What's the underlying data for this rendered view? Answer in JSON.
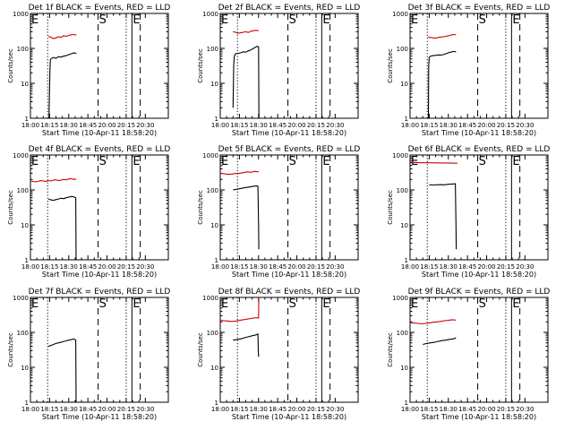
{
  "common": {
    "ylabel": "Counts/sec",
    "xlabel": "Start Time (10-Apr-11 18:58:20)",
    "x_tick_labels": [
      "18:00",
      "18:15",
      "18:30",
      "18:45",
      "20:00",
      "20:15",
      "20:30"
    ],
    "y_tick_labels": [
      "1",
      "10",
      "100",
      "1000"
    ],
    "x_ticks_minutes": [
      0,
      15,
      30,
      45,
      60,
      75,
      90
    ],
    "y_ticks": [
      1,
      10,
      100,
      1000
    ],
    "xlim_minutes": [
      0,
      108
    ],
    "ylim": [
      1,
      1000
    ],
    "y_scale": "log",
    "event_colors": {
      "events": "#000000",
      "lld": "#cc0000"
    }
  },
  "chart_data": [
    {
      "type": "line",
      "title": "Det 1f BLACK = Events, RED = LLD",
      "markers": [
        {
          "label": "E",
          "x": 0,
          "style": "solid"
        },
        {
          "label": "",
          "x": 13.5,
          "style": "dotted"
        },
        {
          "label": "S",
          "x": 53,
          "style": "dashed"
        },
        {
          "label": "",
          "x": 75,
          "style": "dotted"
        },
        {
          "label": "E",
          "x": 79.5,
          "style": "solid"
        },
        {
          "label": "",
          "x": 86,
          "style": "dashed"
        }
      ],
      "series": [
        {
          "name": "LLD",
          "x": [
            14,
            16,
            18,
            20,
            22,
            24,
            26,
            28,
            30,
            32,
            34,
            36
          ],
          "y": [
            220,
            210,
            190,
            200,
            215,
            205,
            230,
            220,
            235,
            245,
            250,
            240
          ]
        },
        {
          "name": "Events",
          "x": [
            14.5,
            15.2,
            15.6,
            16,
            18,
            20,
            22,
            24,
            26,
            28,
            30,
            32,
            34,
            36
          ],
          "y": [
            1,
            20,
            45,
            50,
            55,
            52,
            58,
            56,
            60,
            62,
            66,
            70,
            74,
            72
          ]
        }
      ]
    },
    {
      "type": "line",
      "title": "Det 2f BLACK = Events, RED = LLD",
      "markers": [
        {
          "label": "E",
          "x": 0,
          "style": "solid"
        },
        {
          "label": "",
          "x": 13.5,
          "style": "dotted"
        },
        {
          "label": "S",
          "x": 53,
          "style": "dashed"
        },
        {
          "label": "",
          "x": 75,
          "style": "dotted"
        },
        {
          "label": "E",
          "x": 79.5,
          "style": "solid"
        },
        {
          "label": "",
          "x": 86,
          "style": "dashed"
        }
      ],
      "series": [
        {
          "name": "LLD",
          "x": [
            10,
            12,
            14,
            16,
            18,
            20,
            22,
            24,
            26,
            28,
            30
          ],
          "y": [
            300,
            290,
            270,
            280,
            290,
            300,
            285,
            310,
            320,
            330,
            320
          ]
        },
        {
          "name": "Events",
          "x": [
            10,
            10.5,
            11,
            12,
            14,
            16,
            18,
            20,
            22,
            24,
            26,
            28,
            29,
            30,
            30.3
          ],
          "y": [
            2,
            30,
            60,
            70,
            72,
            75,
            80,
            78,
            85,
            90,
            100,
            110,
            115,
            110,
            1
          ]
        }
      ]
    },
    {
      "type": "line",
      "title": "Det 3f BLACK = Events, RED = LLD",
      "markers": [
        {
          "label": "E",
          "x": 0,
          "style": "solid"
        },
        {
          "label": "",
          "x": 13.5,
          "style": "dotted"
        },
        {
          "label": "S",
          "x": 53,
          "style": "dashed"
        },
        {
          "label": "",
          "x": 75,
          "style": "dotted"
        },
        {
          "label": "E",
          "x": 79.5,
          "style": "solid"
        },
        {
          "label": "",
          "x": 86,
          "style": "dashed"
        }
      ],
      "series": [
        {
          "name": "LLD",
          "x": [
            14,
            16,
            18,
            20,
            22,
            24,
            26,
            28,
            30,
            32,
            34,
            36
          ],
          "y": [
            210,
            205,
            200,
            195,
            205,
            210,
            215,
            220,
            230,
            240,
            250,
            245
          ]
        },
        {
          "name": "Events",
          "x": [
            14.4,
            14.6,
            15,
            16,
            18,
            20,
            22,
            24,
            26,
            28,
            30,
            32,
            34,
            36
          ],
          "y": [
            1,
            30,
            55,
            60,
            62,
            63,
            65,
            64,
            66,
            70,
            75,
            78,
            82,
            80
          ]
        }
      ]
    },
    {
      "type": "line",
      "title": "Det 4f BLACK = Events, RED = LLD",
      "markers": [
        {
          "label": "E",
          "x": 0,
          "style": "solid"
        },
        {
          "label": "",
          "x": 13.5,
          "style": "dotted"
        },
        {
          "label": "S",
          "x": 53,
          "style": "dashed"
        },
        {
          "label": "",
          "x": 75,
          "style": "dotted"
        },
        {
          "label": "E",
          "x": 79.5,
          "style": "solid"
        },
        {
          "label": "",
          "x": 86,
          "style": "dashed"
        }
      ],
      "series": [
        {
          "name": "LLD",
          "x": [
            0,
            2,
            4,
            6,
            8,
            10,
            12,
            14,
            16,
            18,
            20,
            22,
            24,
            26,
            28,
            30,
            32,
            34,
            36
          ],
          "y": [
            180,
            175,
            170,
            175,
            185,
            180,
            175,
            185,
            180,
            190,
            195,
            185,
            190,
            200,
            195,
            205,
            210,
            200,
            205
          ]
        },
        {
          "name": "Events",
          "x": [
            14,
            16,
            18,
            20,
            22,
            24,
            26,
            28,
            30,
            32,
            34,
            35.5,
            35.8
          ],
          "y": [
            55,
            52,
            50,
            53,
            55,
            58,
            56,
            60,
            62,
            65,
            63,
            60,
            1
          ]
        }
      ]
    },
    {
      "type": "line",
      "title": "Det 5f BLACK = Events, RED = LLD",
      "markers": [
        {
          "label": "E",
          "x": 0,
          "style": "solid"
        },
        {
          "label": "",
          "x": 13.5,
          "style": "dotted"
        },
        {
          "label": "S",
          "x": 53,
          "style": "dashed"
        },
        {
          "label": "",
          "x": 75,
          "style": "dotted"
        },
        {
          "label": "E",
          "x": 79.5,
          "style": "solid"
        },
        {
          "label": "",
          "x": 86,
          "style": "dashed"
        }
      ],
      "series": [
        {
          "name": "LLD",
          "x": [
            0,
            3,
            6,
            9,
            12,
            15,
            18,
            21,
            24,
            27,
            30
          ],
          "y": [
            300,
            290,
            280,
            285,
            295,
            300,
            310,
            330,
            320,
            340,
            330
          ]
        },
        {
          "name": "Events",
          "x": [
            10,
            13,
            16,
            19,
            22,
            25,
            28,
            29.5,
            30,
            30.2
          ],
          "y": [
            100,
            105,
            110,
            115,
            120,
            125,
            130,
            128,
            10,
            2
          ]
        }
      ]
    },
    {
      "type": "line",
      "title": "Det 6f BLACK = Events, RED = LLD",
      "markers": [
        {
          "label": "E",
          "x": 0,
          "style": "solid"
        },
        {
          "label": "",
          "x": 13.5,
          "style": "dotted"
        },
        {
          "label": "S",
          "x": 53,
          "style": "dashed"
        },
        {
          "label": "",
          "x": 75,
          "style": "dotted"
        },
        {
          "label": "E",
          "x": 79.5,
          "style": "solid"
        },
        {
          "label": "",
          "x": 86,
          "style": "dashed"
        }
      ],
      "series": [
        {
          "name": "LLD",
          "x": [
            0,
            5,
            10,
            15,
            20,
            25,
            30,
            35,
            37
          ],
          "y": [
            620,
            610,
            600,
            600,
            595,
            590,
            590,
            580,
            580
          ]
        },
        {
          "name": "Events",
          "x": [
            15,
            18,
            21,
            24,
            27,
            30,
            33,
            35.5,
            36,
            36.2
          ],
          "y": [
            140,
            138,
            140,
            142,
            140,
            145,
            148,
            150,
            10,
            2
          ]
        }
      ]
    },
    {
      "type": "line",
      "title": "Det 7f BLACK = Events, RED = LLD",
      "markers": [
        {
          "label": "E",
          "x": 0,
          "style": "solid"
        },
        {
          "label": "",
          "x": 13.5,
          "style": "dotted"
        },
        {
          "label": "S",
          "x": 53,
          "style": "dashed"
        },
        {
          "label": "",
          "x": 75,
          "style": "dotted"
        },
        {
          "label": "E",
          "x": 79.5,
          "style": "solid"
        },
        {
          "label": "",
          "x": 86,
          "style": "dashed"
        }
      ],
      "series": [
        {
          "name": "Events",
          "x": [
            14,
            16,
            18,
            20,
            22,
            24,
            26,
            28,
            30,
            32,
            34,
            35.5,
            35.8
          ],
          "y": [
            40,
            42,
            45,
            48,
            50,
            52,
            55,
            57,
            60,
            62,
            65,
            60,
            1
          ]
        }
      ]
    },
    {
      "type": "line",
      "title": "Det 8f BLACK = Events, RED = LLD",
      "markers": [
        {
          "label": "E",
          "x": 0,
          "style": "solid"
        },
        {
          "label": "",
          "x": 13.5,
          "style": "dotted"
        },
        {
          "label": "S",
          "x": 53,
          "style": "dashed"
        },
        {
          "label": "",
          "x": 75,
          "style": "dotted"
        },
        {
          "label": "E",
          "x": 79.5,
          "style": "solid"
        },
        {
          "label": "",
          "x": 86,
          "style": "dashed"
        }
      ],
      "series": [
        {
          "name": "LLD",
          "x": [
            0,
            3,
            6,
            9,
            12,
            15,
            18,
            21,
            24,
            27,
            30,
            30.2
          ],
          "y": [
            220,
            215,
            210,
            205,
            210,
            220,
            230,
            240,
            250,
            260,
            260,
            1000
          ]
        },
        {
          "name": "Events",
          "x": [
            10,
            13,
            16,
            19,
            22,
            25,
            28,
            29.5,
            29.8,
            30
          ],
          "y": [
            60,
            62,
            65,
            70,
            75,
            80,
            85,
            90,
            30,
            20
          ]
        }
      ]
    },
    {
      "type": "line",
      "title": "Det 9f BLACK = Events, RED = LLD",
      "markers": [
        {
          "label": "E",
          "x": 0,
          "style": "solid"
        },
        {
          "label": "",
          "x": 13.5,
          "style": "dotted"
        },
        {
          "label": "S",
          "x": 53,
          "style": "dashed"
        },
        {
          "label": "",
          "x": 75,
          "style": "dotted"
        },
        {
          "label": "E",
          "x": 79.5,
          "style": "solid"
        },
        {
          "label": "",
          "x": 86,
          "style": "dashed"
        }
      ],
      "series": [
        {
          "name": "LLD",
          "x": [
            0,
            3,
            6,
            9,
            12,
            15,
            18,
            21,
            24,
            27,
            30,
            33,
            36
          ],
          "y": [
            190,
            185,
            180,
            175,
            180,
            185,
            195,
            200,
            205,
            215,
            220,
            230,
            225
          ]
        },
        {
          "name": "Events",
          "x": [
            10,
            13,
            16,
            19,
            22,
            25,
            28,
            31,
            34,
            36
          ],
          "y": [
            45,
            48,
            50,
            52,
            55,
            58,
            60,
            63,
            65,
            70
          ]
        }
      ]
    }
  ]
}
